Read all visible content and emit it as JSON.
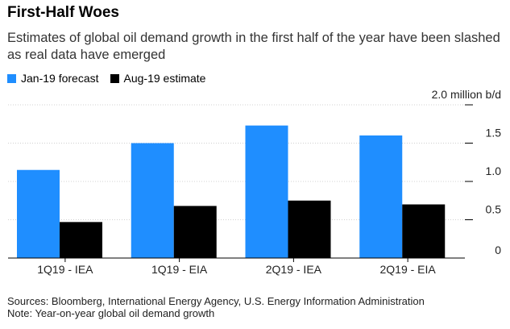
{
  "title": "First-Half Woes",
  "subtitle": "Estimates of global oil demand growth in the first half of the year have been slashed as real data have emerged",
  "footer": {
    "sources": "Sources: Bloomberg, International Energy Agency, U.S. Energy Information Administration",
    "note": "Note: Year-on-year global oil demand growth"
  },
  "colors": {
    "blue": "#1F8EFF",
    "black": "#000000",
    "grid": "#d0d0d0"
  },
  "chart_data": {
    "type": "bar",
    "title": "First-Half Woes",
    "xlabel": "",
    "ylabel": "million b/d",
    "unit_label": "2.0 million b/d",
    "ylim": [
      0,
      2.0
    ],
    "yticks": [
      0,
      0.5,
      1.0,
      1.5,
      2.0
    ],
    "ytick_labels": [
      "0",
      "0.5",
      "1.0",
      "1.5",
      "2.0 million b/d"
    ],
    "categories": [
      "1Q19 - IEA",
      "1Q19 - EIA",
      "2Q19 - IEA",
      "2Q19 - EIA"
    ],
    "series": [
      {
        "name": "Jan-19 forecast",
        "color": "#1F8EFF",
        "values": [
          1.15,
          1.5,
          1.73,
          1.6
        ]
      },
      {
        "name": "Aug-19 estimate",
        "color": "#000000",
        "values": [
          0.47,
          0.68,
          0.75,
          0.7
        ]
      }
    ],
    "legend_position": "top-left",
    "grid": true
  }
}
